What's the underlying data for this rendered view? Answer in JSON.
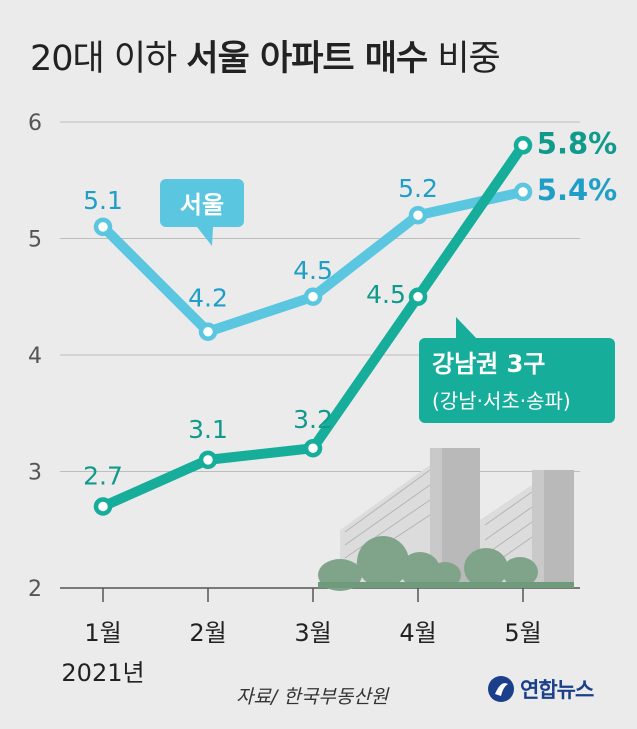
{
  "title": {
    "part1": "20대 이하",
    "part2": "서울 아파트 매수",
    "part3": "비중"
  },
  "source": "자료/ 한국부동산원",
  "logo": {
    "text": "연합뉴스"
  },
  "colors": {
    "seoul": "#5bc6e0",
    "gangnam": "#17ad9b",
    "seoul_label": "#1f9fc7",
    "gangnam_label": "#109a8c"
  },
  "chart_data": {
    "type": "line",
    "title": "20대 이하 서울 아파트 매수 비중",
    "categories": [
      "1월",
      "2월",
      "3월",
      "4월",
      "5월"
    ],
    "x_sublabel": "2021년",
    "y_ticks": [
      "2",
      "3",
      "4",
      "5",
      "6"
    ],
    "ylim": [
      2,
      6
    ],
    "series": [
      {
        "name": "서울",
        "values": [
          5.1,
          4.2,
          4.5,
          5.2,
          5.4
        ],
        "labels": [
          "5.1",
          "4.2",
          "4.5",
          "5.2",
          "5.4%"
        ]
      },
      {
        "name": "강남권 3구",
        "subname": "(강남·서초·송파)",
        "values": [
          2.7,
          3.1,
          3.2,
          4.5,
          5.8
        ],
        "labels": [
          "2.7",
          "3.1",
          "3.2",
          "4.5",
          "5.8%"
        ]
      }
    ]
  }
}
